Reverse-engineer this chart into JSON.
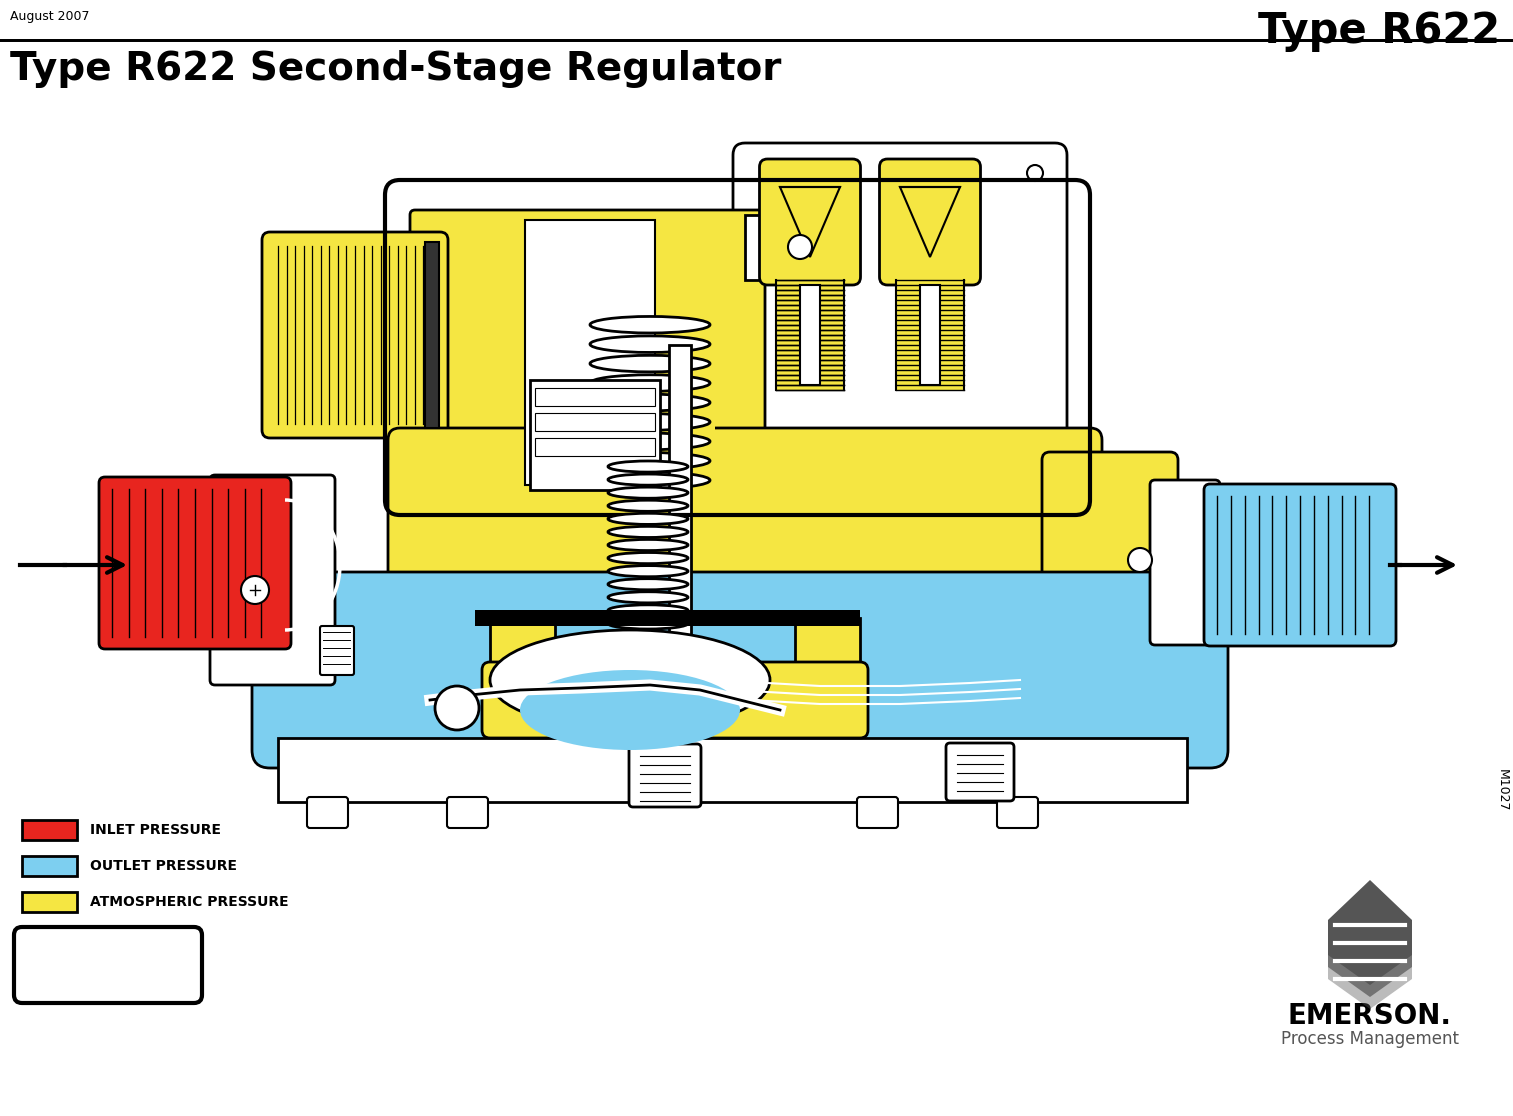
{
  "title_top_right": "Type R622",
  "title_date": "August 2007",
  "title_main": "Type R622 Second-Stage Regulator",
  "figure_id": "M1027",
  "legend_items": [
    {
      "label": "INLET PRESSURE",
      "color": "#E8251F"
    },
    {
      "label": "OUTLET PRESSURE",
      "color": "#7DCFF0"
    },
    {
      "label": "ATMOSPHERIC PRESSURE",
      "color": "#F5E642"
    }
  ],
  "bg_color": "#FFFFFF",
  "colors": {
    "red": "#E8251F",
    "blue": "#7DCFF0",
    "yellow": "#F5E642",
    "white": "#FFFFFF",
    "black": "#000000",
    "gray": "#888888",
    "dark_gray": "#555555"
  }
}
